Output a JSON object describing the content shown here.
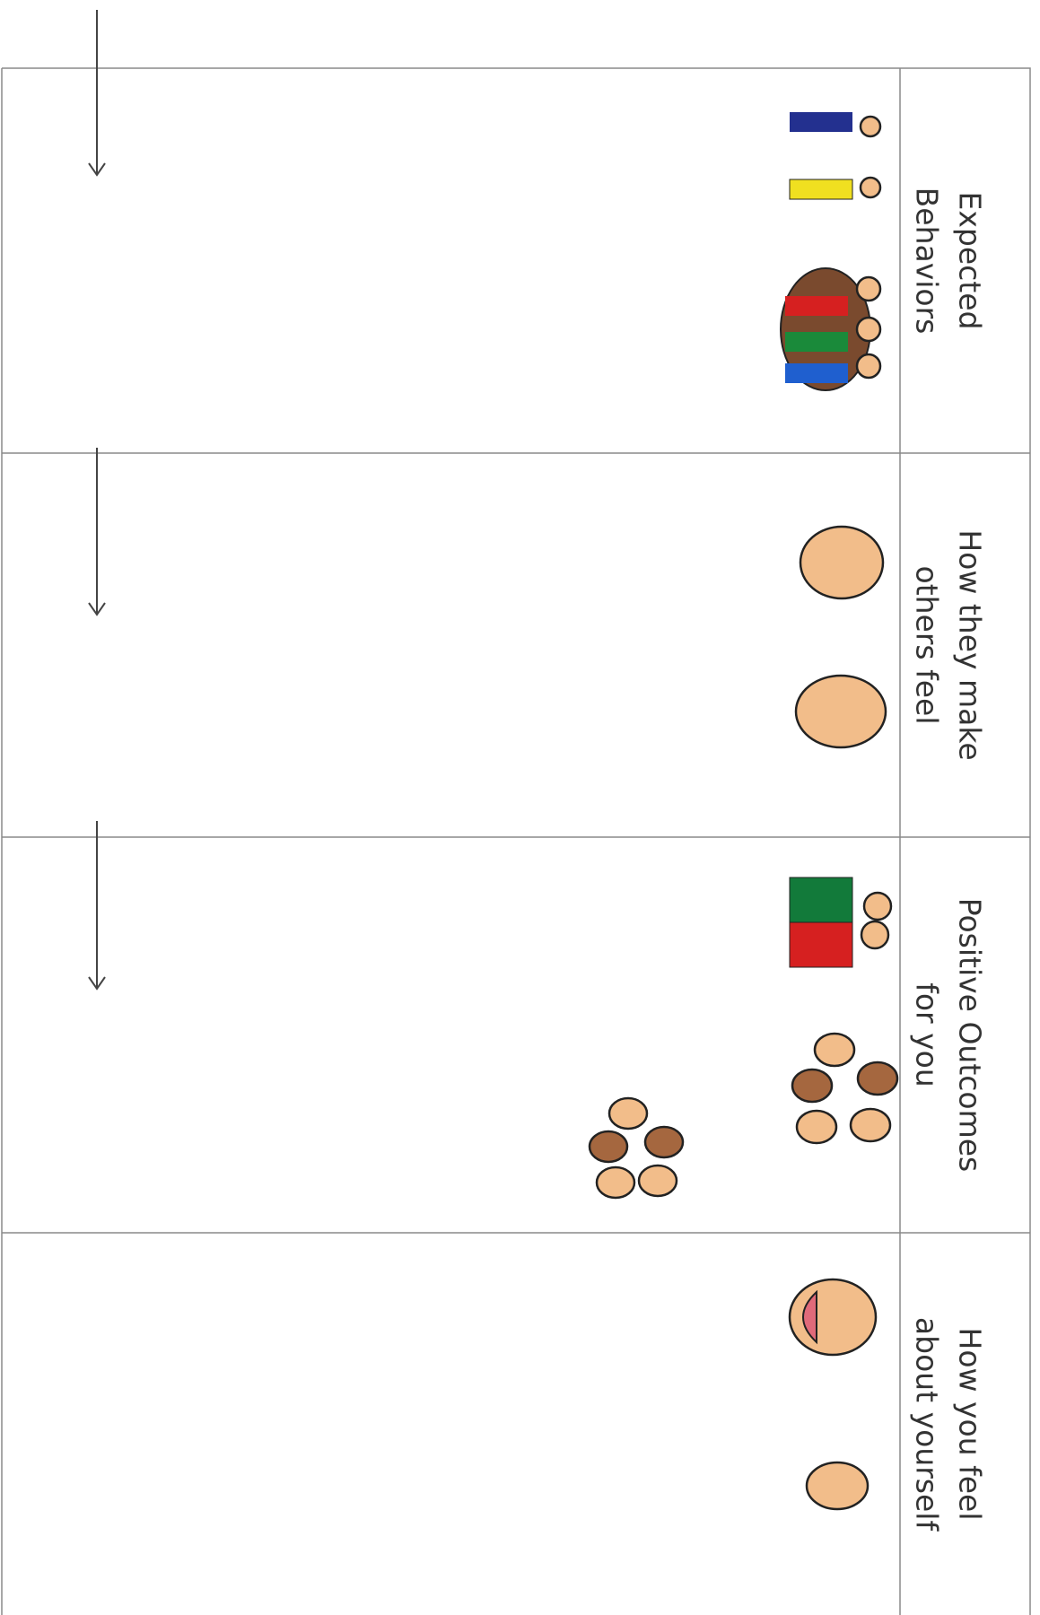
{
  "sections": [
    {
      "lines": [
        "Expected",
        "Behaviors"
      ]
    },
    {
      "lines": [
        "How they make",
        "others feel"
      ]
    },
    {
      "lines": [
        "Positive Outcomes",
        "for you"
      ]
    },
    {
      "lines": [
        "How you feel",
        "about yourself"
      ]
    }
  ]
}
